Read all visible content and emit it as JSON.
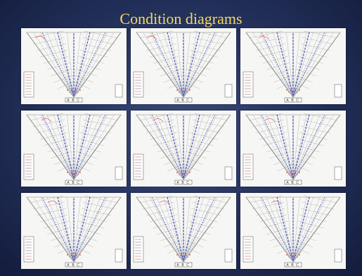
{
  "slide": {
    "title": "Condition diagrams"
  },
  "diagrams": [
    {
      "labels": [
        "A",
        "B",
        "C"
      ]
    },
    {
      "labels": [
        "A",
        "B",
        "C"
      ]
    },
    {
      "labels": [
        "A",
        "B",
        "C"
      ]
    },
    {
      "labels": [
        "A",
        "B",
        "C"
      ]
    },
    {
      "labels": [
        "A",
        "B",
        "C"
      ]
    },
    {
      "labels": [
        "A",
        "B",
        "C"
      ]
    },
    {
      "labels": [
        "A",
        "B",
        "C"
      ]
    },
    {
      "labels": [
        "A",
        "B",
        "C"
      ]
    },
    {
      "labels": [
        "A",
        "B",
        "C"
      ]
    }
  ],
  "colors": {
    "title": "#f4d860",
    "rib": "#4a5bb8",
    "annotation_red": "#d84a3a",
    "annotation_pink": "#e27ab0"
  }
}
